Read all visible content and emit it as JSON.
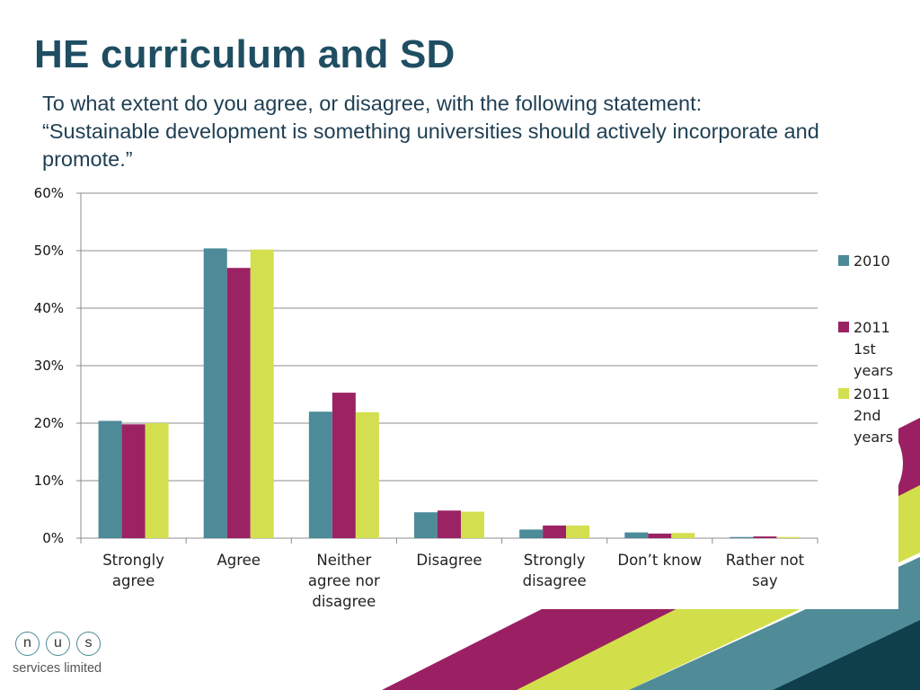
{
  "slide": {
    "title": "HE curriculum and SD",
    "question_lines": [
      "To what extent do you agree, or disagree, with the following statement:",
      "“Sustainable development is something universities should actively incorporate and",
      "promote.”"
    ]
  },
  "logo": {
    "letters": [
      "n",
      "u",
      "s"
    ],
    "subtitle": "services limited"
  },
  "colors": {
    "title": "#1f4e62",
    "stripe_purple": "#9b2063",
    "stripe_yellow": "#d2df4a",
    "stripe_teal": "#4f8c98",
    "stripe_dark": "#0e3f4a"
  },
  "chart_data": {
    "type": "bar",
    "categories": [
      [
        "Strongly",
        "agree"
      ],
      [
        "Agree"
      ],
      [
        "Neither",
        "agree nor",
        "disagree"
      ],
      [
        "Disagree"
      ],
      [
        "Strongly",
        "disagree"
      ],
      [
        "Don’t know"
      ],
      [
        "Rather not",
        "say"
      ]
    ],
    "series": [
      {
        "name": [
          "2010"
        ],
        "color": "#4d8b99",
        "values": [
          20.4,
          50.4,
          22.0,
          4.5,
          1.5,
          1.0,
          0.2
        ]
      },
      {
        "name": [
          "2011",
          "1st",
          "years"
        ],
        "color": "#9b2363",
        "values": [
          19.8,
          47.0,
          25.3,
          4.8,
          2.2,
          0.8,
          0.3
        ]
      },
      {
        "name": [
          "2011",
          "2nd",
          "years"
        ],
        "color": "#d3df4f",
        "values": [
          20.0,
          50.2,
          21.9,
          4.6,
          2.2,
          0.9,
          0.2
        ]
      }
    ],
    "ylim": [
      0,
      60
    ],
    "yticks": [
      "0%",
      "10%",
      "20%",
      "30%",
      "40%",
      "50%",
      "60%"
    ],
    "grid": true,
    "legend": "right"
  }
}
